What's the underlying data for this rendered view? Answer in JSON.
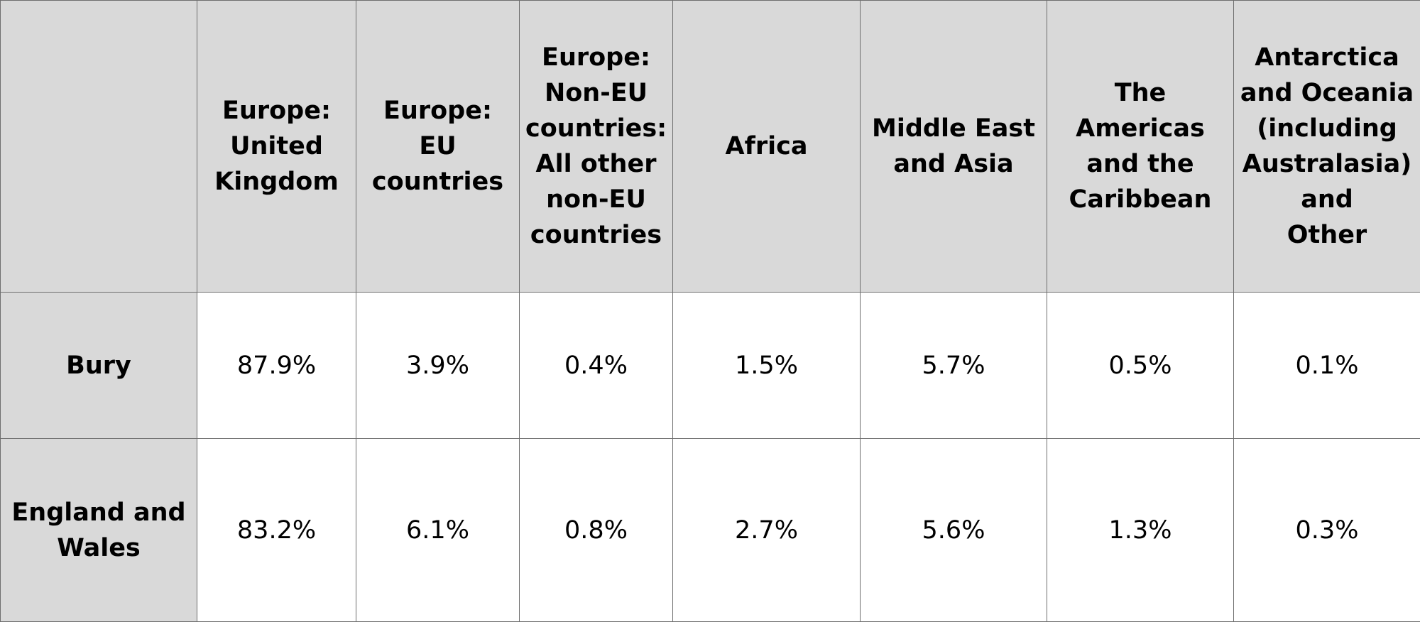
{
  "chart_data": {
    "type": "table",
    "corner_label": "",
    "columns": [
      "Europe:\nUnited\nKingdom",
      "Europe: EU\ncountries",
      "Europe:\nNon-EU\ncountries:\nAll other\nnon-EU\ncountries",
      "Africa",
      "Middle East\nand Asia",
      "The Americas\nand the\nCaribbean",
      "Antarctica\nand Oceania\n(including\nAustralasia)\nand\nOther"
    ],
    "rows": [
      {
        "label": "Bury",
        "values": [
          "87.9%",
          "3.9%",
          "0.4%",
          "1.5%",
          "5.7%",
          "0.5%",
          "0.1%"
        ]
      },
      {
        "label": "England and\nWales",
        "values": [
          "83.2%",
          "6.1%",
          "0.8%",
          "2.7%",
          "5.6%",
          "1.3%",
          "0.3%"
        ]
      }
    ]
  },
  "colors": {
    "header_background": "#d9d9d9",
    "cell_background": "#ffffff",
    "grid_line": "#6e6e6e",
    "text": "#000000"
  }
}
